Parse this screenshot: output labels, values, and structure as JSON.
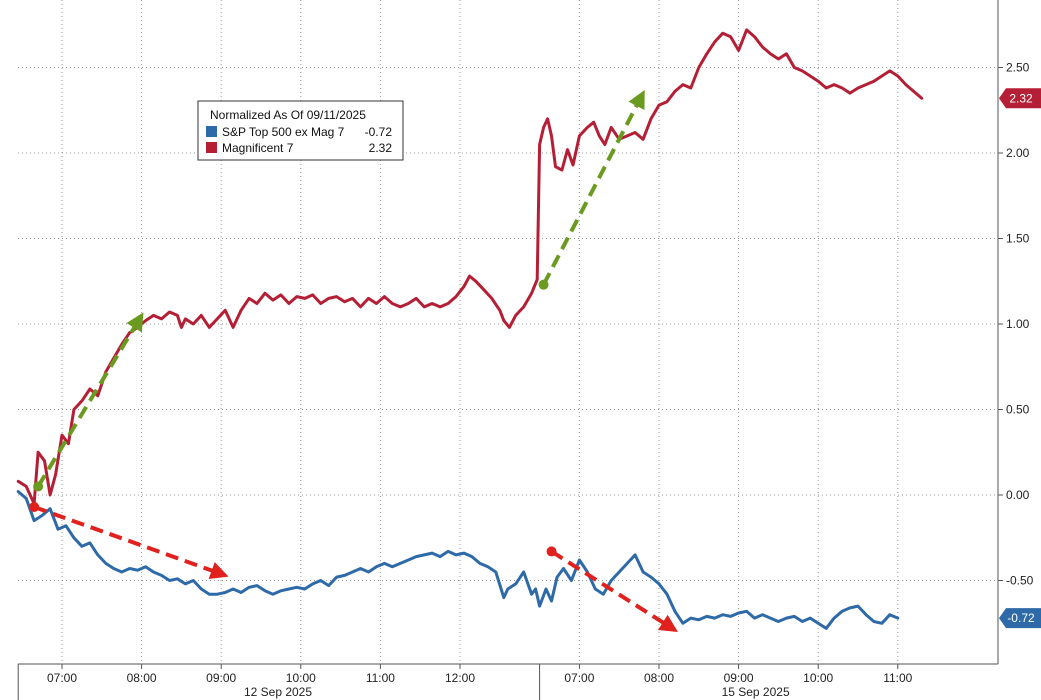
{
  "chart_data": {
    "type": "line",
    "legend": {
      "title": "Normalized As Of 09/11/2025",
      "placement": "top-left",
      "entries": [
        {
          "label": "S&P Top 500 ex Mag 7",
          "value": "-0.72",
          "color": "#2e6aa8"
        },
        {
          "label": "Magnificent 7",
          "value": "2.32",
          "color": "#b51f35"
        }
      ]
    },
    "y_axis": {
      "position": "right",
      "ylim": [
        -0.95,
        2.85
      ],
      "ticks": [
        -0.5,
        0.0,
        0.5,
        1.0,
        1.5,
        2.0,
        2.5
      ],
      "tick_labels": [
        "-0.50",
        "0.00",
        "0.50",
        "1.00",
        "1.50",
        "2.00",
        "2.50"
      ]
    },
    "x_axis": {
      "xlim": [
        -0.55,
        11.85
      ],
      "ticks": [
        0.0,
        1.0,
        2.0,
        3.0,
        4.0,
        5.0,
        6.5,
        7.5,
        8.5,
        9.5,
        10.5
      ],
      "tick_labels": [
        "07:00",
        "08:00",
        "09:00",
        "10:00",
        "11:00",
        "12:00",
        "07:00",
        "08:00",
        "09:00",
        "10:00",
        "11:00"
      ],
      "session_separators": [
        -0.55,
        6.0
      ],
      "date_labels": [
        {
          "label": "12 Sep 2025",
          "x": 2.5
        },
        {
          "label": "15 Sep 2025",
          "x": 8.5
        }
      ]
    },
    "grid": true,
    "series": [
      {
        "name": "Magnificent 7",
        "color": "#b51f35",
        "last_value": "2.32",
        "points": [
          [
            -0.55,
            0.08
          ],
          [
            -0.45,
            0.05
          ],
          [
            -0.35,
            -0.05
          ],
          [
            -0.3,
            0.25
          ],
          [
            -0.22,
            0.2
          ],
          [
            -0.15,
            0.0
          ],
          [
            -0.08,
            0.12
          ],
          [
            0.0,
            0.35
          ],
          [
            0.08,
            0.3
          ],
          [
            0.15,
            0.5
          ],
          [
            0.25,
            0.55
          ],
          [
            0.35,
            0.62
          ],
          [
            0.45,
            0.58
          ],
          [
            0.55,
            0.72
          ],
          [
            0.65,
            0.8
          ],
          [
            0.75,
            0.88
          ],
          [
            0.85,
            0.95
          ],
          [
            0.95,
            0.98
          ],
          [
            1.05,
            1.02
          ],
          [
            1.15,
            1.05
          ],
          [
            1.25,
            1.03
          ],
          [
            1.35,
            1.07
          ],
          [
            1.45,
            1.05
          ],
          [
            1.5,
            0.98
          ],
          [
            1.55,
            1.03
          ],
          [
            1.65,
            1.0
          ],
          [
            1.75,
            1.05
          ],
          [
            1.85,
            0.98
          ],
          [
            1.95,
            1.03
          ],
          [
            2.05,
            1.08
          ],
          [
            2.15,
            0.98
          ],
          [
            2.25,
            1.08
          ],
          [
            2.35,
            1.15
          ],
          [
            2.45,
            1.12
          ],
          [
            2.55,
            1.18
          ],
          [
            2.65,
            1.14
          ],
          [
            2.75,
            1.17
          ],
          [
            2.85,
            1.12
          ],
          [
            2.95,
            1.16
          ],
          [
            3.05,
            1.15
          ],
          [
            3.15,
            1.17
          ],
          [
            3.25,
            1.12
          ],
          [
            3.35,
            1.15
          ],
          [
            3.45,
            1.16
          ],
          [
            3.55,
            1.13
          ],
          [
            3.65,
            1.15
          ],
          [
            3.75,
            1.1
          ],
          [
            3.85,
            1.15
          ],
          [
            3.95,
            1.12
          ],
          [
            4.05,
            1.16
          ],
          [
            4.15,
            1.12
          ],
          [
            4.25,
            1.1
          ],
          [
            4.35,
            1.12
          ],
          [
            4.45,
            1.15
          ],
          [
            4.55,
            1.1
          ],
          [
            4.65,
            1.12
          ],
          [
            4.75,
            1.1
          ],
          [
            4.85,
            1.12
          ],
          [
            4.95,
            1.16
          ],
          [
            5.05,
            1.22
          ],
          [
            5.12,
            1.28
          ],
          [
            5.2,
            1.25
          ],
          [
            5.3,
            1.2
          ],
          [
            5.4,
            1.15
          ],
          [
            5.5,
            1.08
          ],
          [
            5.55,
            1.02
          ],
          [
            5.62,
            0.98
          ],
          [
            5.7,
            1.05
          ],
          [
            5.8,
            1.1
          ],
          [
            5.9,
            1.18
          ],
          [
            5.97,
            1.26
          ],
          [
            6.0,
            2.05
          ],
          [
            6.05,
            2.15
          ],
          [
            6.1,
            2.2
          ],
          [
            6.15,
            2.1
          ],
          [
            6.2,
            1.92
          ],
          [
            6.28,
            1.9
          ],
          [
            6.35,
            2.02
          ],
          [
            6.42,
            1.93
          ],
          [
            6.5,
            2.1
          ],
          [
            6.6,
            2.15
          ],
          [
            6.68,
            2.18
          ],
          [
            6.75,
            2.1
          ],
          [
            6.82,
            2.05
          ],
          [
            6.9,
            2.15
          ],
          [
            7.0,
            2.08
          ],
          [
            7.1,
            2.1
          ],
          [
            7.2,
            2.12
          ],
          [
            7.3,
            2.08
          ],
          [
            7.4,
            2.2
          ],
          [
            7.5,
            2.28
          ],
          [
            7.6,
            2.3
          ],
          [
            7.7,
            2.36
          ],
          [
            7.8,
            2.4
          ],
          [
            7.9,
            2.38
          ],
          [
            8.0,
            2.5
          ],
          [
            8.1,
            2.58
          ],
          [
            8.2,
            2.65
          ],
          [
            8.3,
            2.7
          ],
          [
            8.4,
            2.68
          ],
          [
            8.5,
            2.6
          ],
          [
            8.6,
            2.72
          ],
          [
            8.7,
            2.68
          ],
          [
            8.8,
            2.62
          ],
          [
            8.9,
            2.58
          ],
          [
            9.0,
            2.55
          ],
          [
            9.1,
            2.58
          ],
          [
            9.2,
            2.5
          ],
          [
            9.3,
            2.48
          ],
          [
            9.4,
            2.45
          ],
          [
            9.5,
            2.42
          ],
          [
            9.6,
            2.38
          ],
          [
            9.7,
            2.4
          ],
          [
            9.8,
            2.38
          ],
          [
            9.9,
            2.35
          ],
          [
            10.0,
            2.38
          ],
          [
            10.1,
            2.4
          ],
          [
            10.2,
            2.42
          ],
          [
            10.3,
            2.45
          ],
          [
            10.4,
            2.48
          ],
          [
            10.5,
            2.45
          ],
          [
            10.6,
            2.4
          ],
          [
            10.7,
            2.36
          ],
          [
            10.8,
            2.32
          ]
        ]
      },
      {
        "name": "S&P Top 500 ex Mag 7",
        "color": "#2e6aa8",
        "last_value": "-0.72",
        "points": [
          [
            -0.55,
            0.02
          ],
          [
            -0.45,
            -0.02
          ],
          [
            -0.35,
            -0.15
          ],
          [
            -0.25,
            -0.12
          ],
          [
            -0.15,
            -0.08
          ],
          [
            -0.05,
            -0.2
          ],
          [
            0.05,
            -0.18
          ],
          [
            0.15,
            -0.25
          ],
          [
            0.25,
            -0.3
          ],
          [
            0.35,
            -0.28
          ],
          [
            0.45,
            -0.35
          ],
          [
            0.55,
            -0.4
          ],
          [
            0.65,
            -0.43
          ],
          [
            0.75,
            -0.45
          ],
          [
            0.85,
            -0.43
          ],
          [
            0.95,
            -0.44
          ],
          [
            1.05,
            -0.42
          ],
          [
            1.15,
            -0.45
          ],
          [
            1.25,
            -0.47
          ],
          [
            1.35,
            -0.5
          ],
          [
            1.45,
            -0.49
          ],
          [
            1.55,
            -0.52
          ],
          [
            1.65,
            -0.5
          ],
          [
            1.75,
            -0.55
          ],
          [
            1.85,
            -0.58
          ],
          [
            1.95,
            -0.58
          ],
          [
            2.05,
            -0.57
          ],
          [
            2.15,
            -0.55
          ],
          [
            2.25,
            -0.57
          ],
          [
            2.35,
            -0.54
          ],
          [
            2.45,
            -0.53
          ],
          [
            2.55,
            -0.56
          ],
          [
            2.65,
            -0.58
          ],
          [
            2.75,
            -0.56
          ],
          [
            2.85,
            -0.55
          ],
          [
            2.95,
            -0.54
          ],
          [
            3.05,
            -0.55
          ],
          [
            3.15,
            -0.52
          ],
          [
            3.25,
            -0.5
          ],
          [
            3.35,
            -0.53
          ],
          [
            3.45,
            -0.48
          ],
          [
            3.55,
            -0.47
          ],
          [
            3.65,
            -0.45
          ],
          [
            3.75,
            -0.43
          ],
          [
            3.85,
            -0.45
          ],
          [
            3.95,
            -0.42
          ],
          [
            4.05,
            -0.4
          ],
          [
            4.15,
            -0.42
          ],
          [
            4.25,
            -0.4
          ],
          [
            4.35,
            -0.38
          ],
          [
            4.45,
            -0.36
          ],
          [
            4.55,
            -0.35
          ],
          [
            4.65,
            -0.34
          ],
          [
            4.75,
            -0.36
          ],
          [
            4.85,
            -0.33
          ],
          [
            4.95,
            -0.35
          ],
          [
            5.05,
            -0.34
          ],
          [
            5.15,
            -0.36
          ],
          [
            5.25,
            -0.4
          ],
          [
            5.35,
            -0.42
          ],
          [
            5.45,
            -0.45
          ],
          [
            5.55,
            -0.6
          ],
          [
            5.6,
            -0.55
          ],
          [
            5.7,
            -0.52
          ],
          [
            5.8,
            -0.45
          ],
          [
            5.9,
            -0.58
          ],
          [
            5.95,
            -0.55
          ],
          [
            6.0,
            -0.65
          ],
          [
            6.08,
            -0.55
          ],
          [
            6.15,
            -0.62
          ],
          [
            6.22,
            -0.48
          ],
          [
            6.3,
            -0.43
          ],
          [
            6.4,
            -0.5
          ],
          [
            6.5,
            -0.38
          ],
          [
            6.6,
            -0.45
          ],
          [
            6.7,
            -0.55
          ],
          [
            6.8,
            -0.58
          ],
          [
            6.9,
            -0.5
          ],
          [
            7.0,
            -0.45
          ],
          [
            7.1,
            -0.4
          ],
          [
            7.2,
            -0.35
          ],
          [
            7.3,
            -0.45
          ],
          [
            7.4,
            -0.48
          ],
          [
            7.5,
            -0.52
          ],
          [
            7.6,
            -0.58
          ],
          [
            7.7,
            -0.68
          ],
          [
            7.8,
            -0.75
          ],
          [
            7.9,
            -0.72
          ],
          [
            8.0,
            -0.73
          ],
          [
            8.1,
            -0.71
          ],
          [
            8.2,
            -0.72
          ],
          [
            8.3,
            -0.7
          ],
          [
            8.4,
            -0.71
          ],
          [
            8.5,
            -0.69
          ],
          [
            8.6,
            -0.68
          ],
          [
            8.7,
            -0.72
          ],
          [
            8.8,
            -0.7
          ],
          [
            8.9,
            -0.72
          ],
          [
            9.0,
            -0.74
          ],
          [
            9.1,
            -0.72
          ],
          [
            9.2,
            -0.71
          ],
          [
            9.3,
            -0.74
          ],
          [
            9.4,
            -0.72
          ],
          [
            9.5,
            -0.75
          ],
          [
            9.6,
            -0.78
          ],
          [
            9.7,
            -0.72
          ],
          [
            9.8,
            -0.68
          ],
          [
            9.9,
            -0.66
          ],
          [
            10.0,
            -0.65
          ],
          [
            10.1,
            -0.7
          ],
          [
            10.2,
            -0.74
          ],
          [
            10.3,
            -0.75
          ],
          [
            10.4,
            -0.7
          ],
          [
            10.5,
            -0.72
          ]
        ]
      }
    ],
    "annotations": [
      {
        "kind": "arrow",
        "color": "#6a9a1f",
        "from": [
          -0.3,
          0.05
        ],
        "to": [
          1.0,
          1.05
        ]
      },
      {
        "kind": "arrow",
        "color": "#6a9a1f",
        "from": [
          6.05,
          1.23
        ],
        "to": [
          7.3,
          2.35
        ]
      },
      {
        "kind": "arrow",
        "color": "#e0211d",
        "from": [
          -0.35,
          -0.07
        ],
        "to": [
          2.05,
          -0.47
        ]
      },
      {
        "kind": "arrow",
        "color": "#e0211d",
        "from": [
          6.15,
          -0.33
        ],
        "to": [
          7.7,
          -0.79
        ]
      }
    ]
  }
}
